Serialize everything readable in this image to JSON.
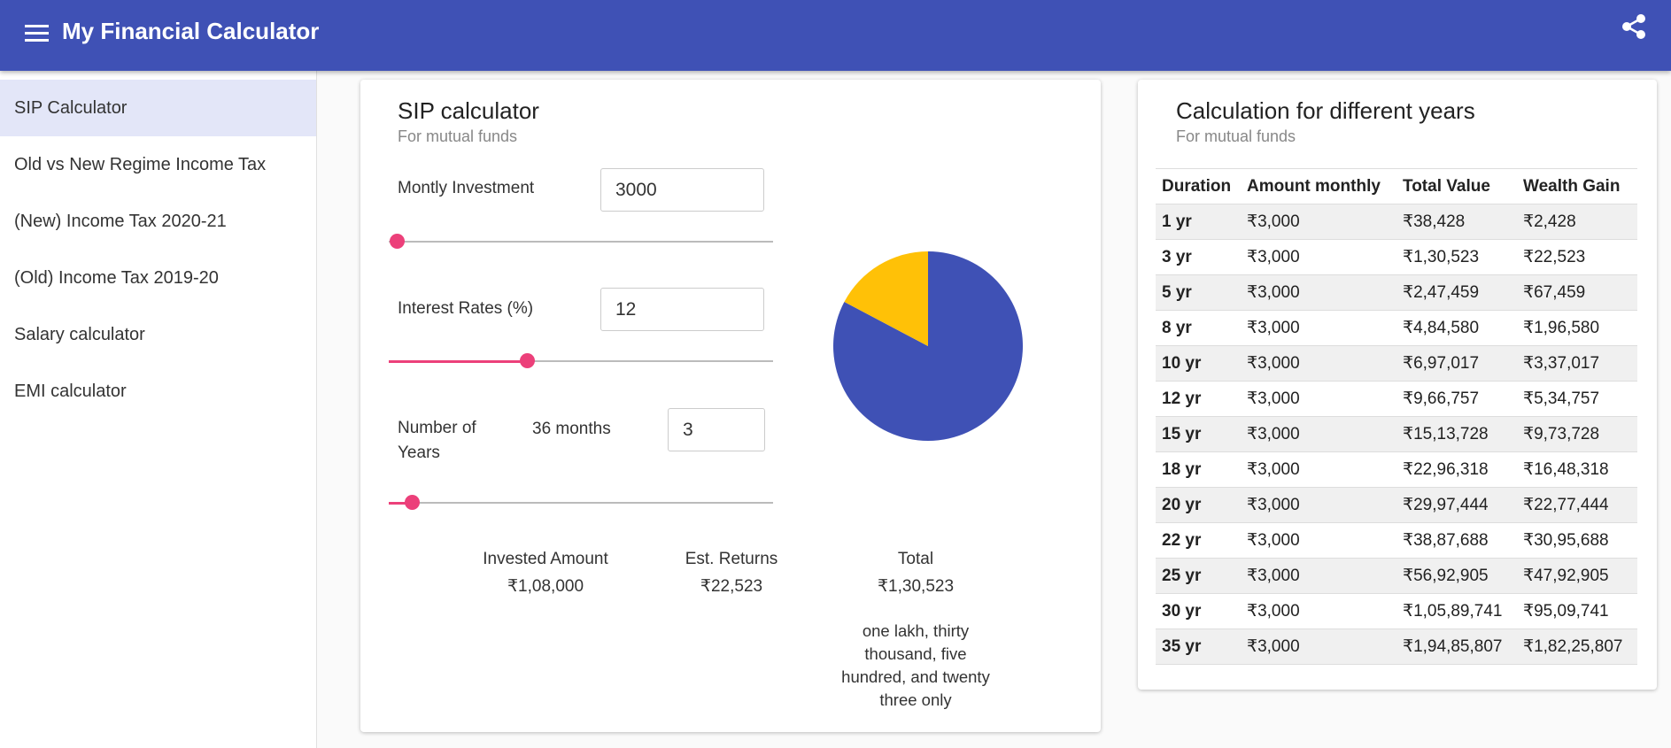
{
  "header": {
    "title": "My Financial Calculator"
  },
  "nav": {
    "items": [
      "SIP Calculator",
      "Old vs New Regime Income Tax",
      "(New) Income Tax 2020-21",
      "(Old) Income Tax 2019-20",
      "Salary calculator",
      "EMI calculator"
    ]
  },
  "sip": {
    "title": "SIP calculator",
    "subtitle": "For mutual funds",
    "fields": [
      {
        "label": "Montly Investment",
        "value": "3000"
      },
      {
        "label": "Interest Rates (%)",
        "value": "12"
      },
      {
        "label": "Number of Years",
        "note": "36 months",
        "value": "3"
      }
    ],
    "summary": [
      {
        "label": "Invested Amount",
        "amount": {
          "value": 108000,
          "label": "₹1,08,000"
        }
      },
      {
        "label": "Est. Returns",
        "amount": {
          "value": 22523,
          "label": "₹22,523"
        }
      },
      {
        "label": "Total",
        "amount": {
          "value": 130523,
          "label": "₹1,30,523"
        }
      }
    ],
    "in_words": "one lakh, thirty thousand, five hundred, and twenty three only",
    "pie_colors": [
      "#3f51b5",
      "#ffc107"
    ]
  },
  "years_table": {
    "title": "Calculation for different years",
    "subtitle": "For mutual funds",
    "columns": [
      "Duration",
      "Amount monthly",
      "Total Value",
      "Wealth Gain"
    ],
    "rows": [
      [
        "1 yr",
        "₹3,000",
        "₹38,428",
        "₹2,428"
      ],
      [
        "3 yr",
        "₹3,000",
        "₹1,30,523",
        "₹22,523"
      ],
      [
        "5 yr",
        "₹3,000",
        "₹2,47,459",
        "₹67,459"
      ],
      [
        "8 yr",
        "₹3,000",
        "₹4,84,580",
        "₹1,96,580"
      ],
      [
        "10 yr",
        "₹3,000",
        "₹6,97,017",
        "₹3,37,017"
      ],
      [
        "12 yr",
        "₹3,000",
        "₹9,66,757",
        "₹5,34,757"
      ],
      [
        "15 yr",
        "₹3,000",
        "₹15,13,728",
        "₹9,73,728"
      ],
      [
        "18 yr",
        "₹3,000",
        "₹22,96,318",
        "₹16,48,318"
      ],
      [
        "20 yr",
        "₹3,000",
        "₹29,97,444",
        "₹22,77,444"
      ],
      [
        "22 yr",
        "₹3,000",
        "₹38,87,688",
        "₹30,95,688"
      ],
      [
        "25 yr",
        "₹3,000",
        "₹56,92,905",
        "₹47,92,905"
      ],
      [
        "30 yr",
        "₹3,000",
        "₹1,05,89,741",
        "₹95,09,741"
      ],
      [
        "35 yr",
        "₹3,000",
        "₹1,94,85,807",
        "₹1,82,25,807"
      ]
    ]
  }
}
